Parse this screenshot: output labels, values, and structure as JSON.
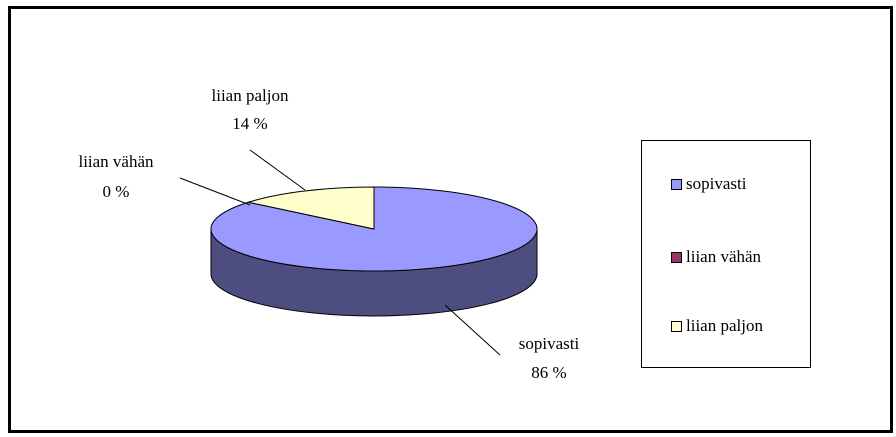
{
  "chart_data": {
    "type": "pie3d",
    "categories": [
      "sopivasti",
      "liian vähän",
      "liian paljon"
    ],
    "values": [
      86,
      0,
      14
    ],
    "value_labels": [
      "86 %",
      "0 %",
      "14 %"
    ],
    "colors": [
      "#9999ff",
      "#993366",
      "#ffffcc"
    ],
    "legend": "right"
  }
}
